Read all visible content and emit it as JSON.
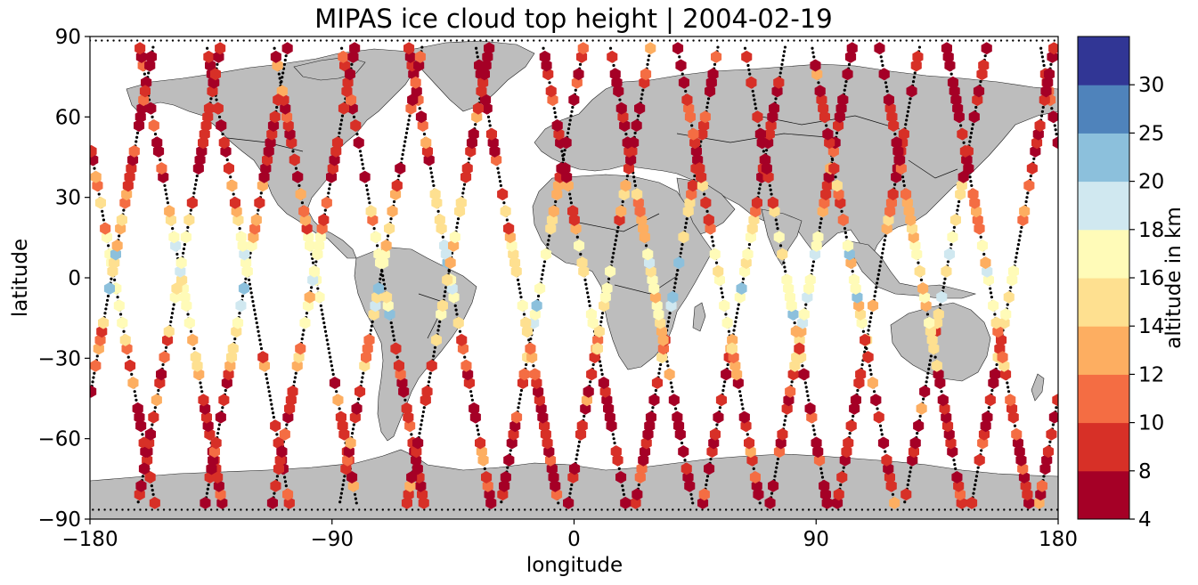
{
  "chart_data": {
    "type": "scatter",
    "title": "MIPAS ice cloud top height | 2004-02-19",
    "xlabel": "longitude",
    "ylabel": "latitude",
    "xlim": [
      -180,
      180
    ],
    "ylim": [
      -90,
      90
    ],
    "xticks": [
      "−180",
      "−90",
      "0",
      "90",
      "180"
    ],
    "yticks": [
      "−90",
      "−60",
      "−30",
      "0",
      "30",
      "60",
      "90"
    ],
    "colorbar": {
      "label": "altitude in km",
      "boundaries": [
        4,
        8,
        10,
        12,
        14,
        16,
        18,
        20,
        25,
        30
      ],
      "tick_labels": [
        "4",
        "8",
        "10",
        "12",
        "14",
        "16",
        "18",
        "20",
        "25",
        "30"
      ],
      "colors": [
        "#a50026",
        "#d73027",
        "#f46d43",
        "#fdae61",
        "#fee090",
        "#fffbb8",
        "#d0e8f0",
        "#8cc0dc",
        "#4f83bb",
        "#313695"
      ]
    },
    "land_color": "#bdbdbd",
    "track_color": "#000000",
    "orbits": [
      {
        "asc_lon": -171,
        "desc_lon": -12
      },
      {
        "asc_lon": -146,
        "desc_lon": 13
      },
      {
        "asc_lon": -121,
        "desc_lon": 38
      },
      {
        "asc_lon": -96,
        "desc_lon": 63
      },
      {
        "asc_lon": -71,
        "desc_lon": 88
      },
      {
        "asc_lon": -46,
        "desc_lon": 113
      },
      {
        "asc_lon": -21,
        "desc_lon": 138
      },
      {
        "asc_lon": 4,
        "desc_lon": 163
      },
      {
        "asc_lon": 29,
        "desc_lon": -172
      },
      {
        "asc_lon": 54,
        "desc_lon": -147
      },
      {
        "asc_lon": 79,
        "desc_lon": -122
      },
      {
        "asc_lon": 104,
        "desc_lon": -97
      },
      {
        "asc_lon": 129,
        "desc_lon": -72
      },
      {
        "asc_lon": 154,
        "desc_lon": -47
      }
    ]
  }
}
